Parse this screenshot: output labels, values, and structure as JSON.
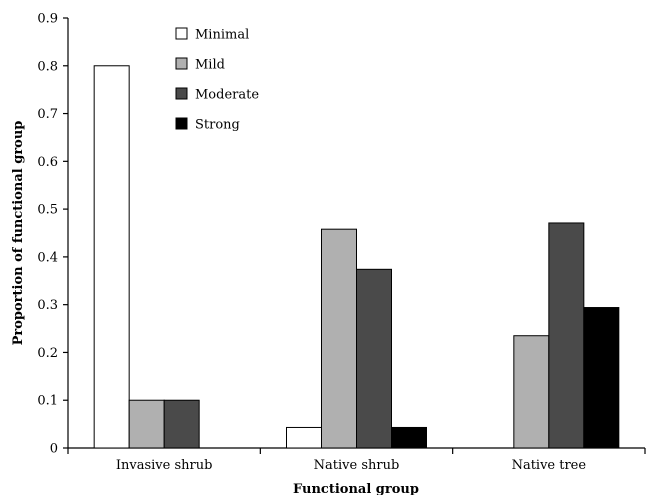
{
  "chart_data": {
    "type": "bar",
    "title": "",
    "xlabel": "Functional group",
    "ylabel": "Proportion of functional group",
    "ylim": [
      0,
      0.9
    ],
    "yticks": [
      "0",
      "0.1",
      "0.2",
      "0.3",
      "0.4",
      "0.5",
      "0.6",
      "0.7",
      "0.8",
      "0.9"
    ],
    "grid": false,
    "legend_position": "top-left",
    "categories": [
      "Invasive shrub",
      "Native shrub",
      "Native tree"
    ],
    "series": [
      {
        "name": "Minimal",
        "color": "#ffffff",
        "values": [
          0.8,
          0.043,
          0
        ]
      },
      {
        "name": "Mild",
        "color": "#b0b0b0",
        "values": [
          0.1,
          0.458,
          0.235
        ]
      },
      {
        "name": "Moderate",
        "color": "#4a4a4a",
        "values": [
          0.1,
          0.374,
          0.471
        ]
      },
      {
        "name": "Strong",
        "color": "#000000",
        "values": [
          0,
          0.043,
          0.294
        ]
      }
    ]
  }
}
